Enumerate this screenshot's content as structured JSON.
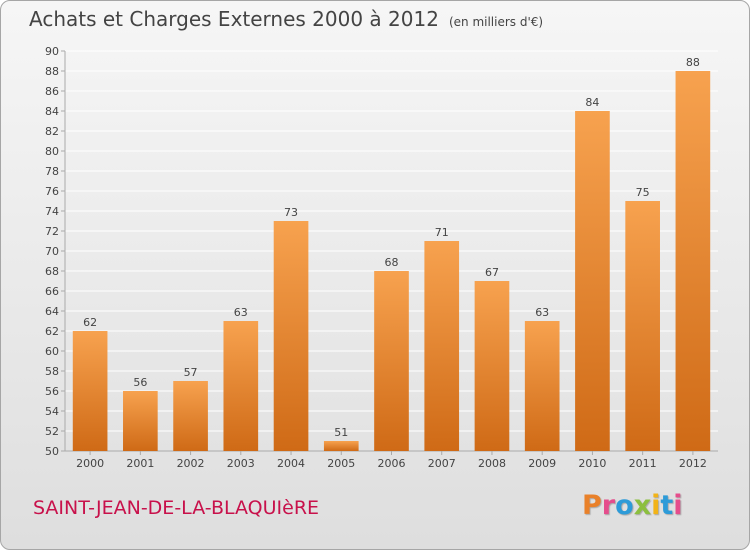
{
  "header": {
    "title": "Achats et Charges Externes 2000 à 2012",
    "subtitle": "(en milliers d'€)"
  },
  "footer": {
    "commune": "SAINT-JEAN-DE-LA-BLAQUIèRE",
    "logo_text": "Proxiti",
    "logo_colors": [
      "#e9812a",
      "#e54d8c",
      "#2d9bd8",
      "#8cbf3f",
      "#f2b318",
      "#2d9bd8",
      "#e54d8c"
    ]
  },
  "colors": {
    "bar_light": "#f7a24f",
    "bar_dark": "#cf6a16",
    "grid": "#ffffff",
    "axis": "#aaaaaa",
    "text": "#444444"
  },
  "chart_data": {
    "type": "bar",
    "title": "Achats et Charges Externes 2000 à 2012",
    "subtitle": "(en milliers d'€)",
    "categories": [
      "2000",
      "2001",
      "2002",
      "2003",
      "2004",
      "2005",
      "2006",
      "2007",
      "2008",
      "2009",
      "2010",
      "2011",
      "2012"
    ],
    "values": [
      62,
      56,
      57,
      63,
      73,
      51,
      68,
      71,
      67,
      63,
      84,
      75,
      88
    ],
    "ylim": [
      50,
      90
    ],
    "yticks": [
      50,
      52,
      54,
      56,
      58,
      60,
      62,
      64,
      66,
      68,
      70,
      72,
      74,
      76,
      78,
      80,
      82,
      84,
      86,
      88,
      90
    ],
    "grid": true,
    "data_labels": true
  }
}
